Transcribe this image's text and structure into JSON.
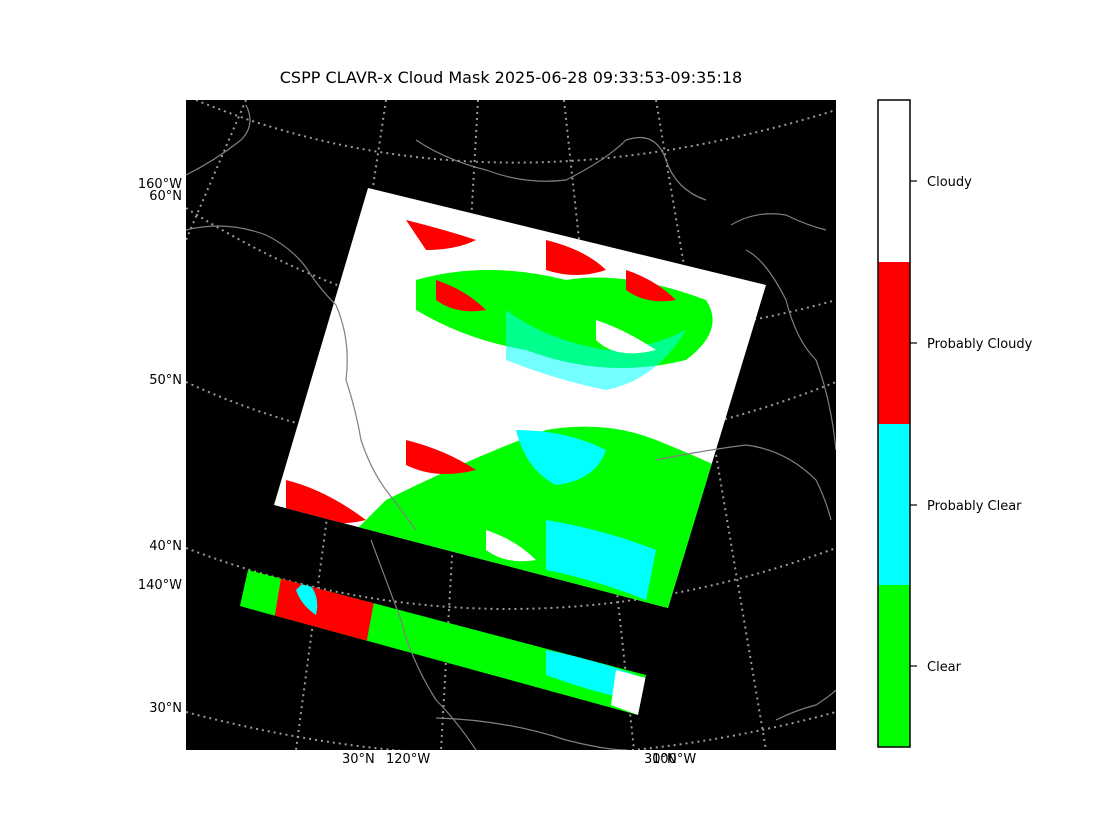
{
  "title": "CSPP CLAVR-x Cloud Mask 2025-06-28 09:33:53-09:35:18",
  "map": {
    "left_labels": [
      "160°W",
      "60°N",
      "50°N",
      "40°N",
      "140°W",
      "30°N"
    ],
    "bottom_labels": [
      "30°N",
      "120°W",
      "30°N",
      "100°W"
    ],
    "colors": {
      "background": "#000000",
      "coastline": "#808080",
      "graticule": "#9a9a9a"
    }
  },
  "legend": {
    "categories": [
      {
        "label": "Cloudy",
        "color": "#ffffff"
      },
      {
        "label": "Probably Cloudy",
        "color": "#ff0000"
      },
      {
        "label": "Probably Clear",
        "color": "#00ffff"
      },
      {
        "label": "Clear",
        "color": "#00ff00"
      }
    ]
  }
}
